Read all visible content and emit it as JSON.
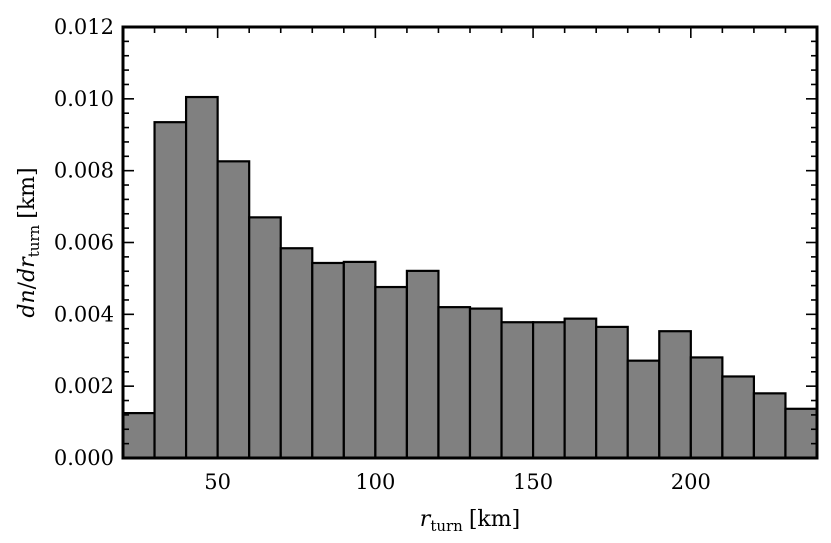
{
  "chart_data": {
    "type": "bar",
    "title": "",
    "x_axis": {
      "label_var": "r",
      "label_sub": "turn",
      "label_unit": "[km]",
      "range": [
        20,
        240
      ],
      "major_ticks": [
        50,
        100,
        150,
        200
      ],
      "minor_step": 10
    },
    "y_axis": {
      "label_num_var": "dn",
      "label_den_var": "dr",
      "label_sub": "turn",
      "label_unit": "[km]",
      "range": [
        0,
        0.012
      ],
      "major_ticks": [
        0.0,
        0.002,
        0.004,
        0.006,
        0.008,
        0.01,
        0.012
      ],
      "minor_step": 0.0004
    },
    "bin_edges": [
      20,
      30,
      40,
      50,
      60,
      70,
      80,
      90,
      100,
      110,
      120,
      130,
      140,
      150,
      160,
      170,
      180,
      190,
      200,
      210,
      220,
      230,
      240
    ],
    "values": [
      0.00125,
      0.00935,
      0.01005,
      0.00826,
      0.0067,
      0.00584,
      0.00543,
      0.00546,
      0.00476,
      0.00521,
      0.0042,
      0.00416,
      0.00378,
      0.00378,
      0.00388,
      0.00365,
      0.00271,
      0.00353,
      0.0028,
      0.00227,
      0.0018,
      0.00137
    ],
    "grid": false,
    "legend": "none",
    "bar_color": "#808080",
    "edge_color": "#000000"
  }
}
